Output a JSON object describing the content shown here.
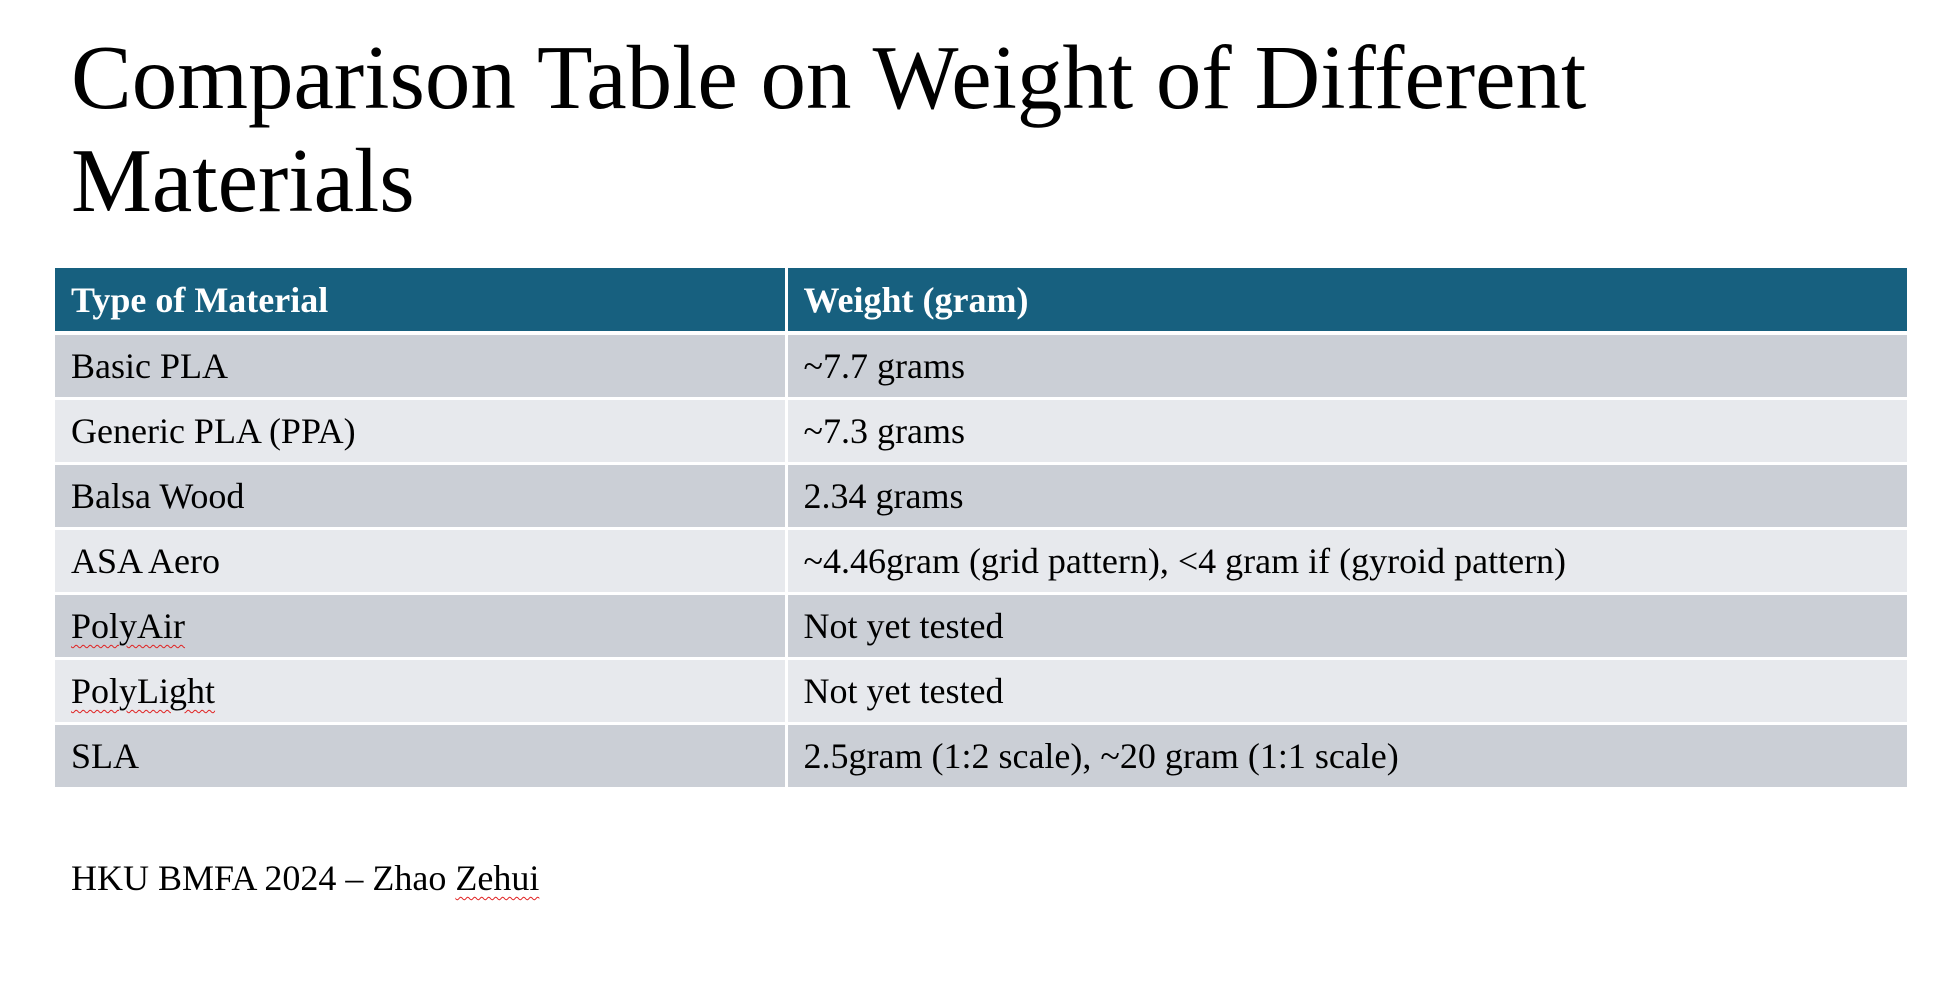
{
  "slide": {
    "title": "Comparison Table on Weight of Different Materials",
    "table": {
      "headers": [
        "Type of Material",
        "Weight (gram)"
      ],
      "rows": [
        [
          "Basic PLA",
          "~7.7 grams"
        ],
        [
          "Generic PLA (PPA)",
          "~7.3 grams"
        ],
        [
          "Balsa Wood",
          "2.34 grams"
        ],
        [
          "ASA Aero",
          "~4.46gram (grid pattern), <4 gram if (gyroid pattern)"
        ],
        [
          "PolyAir",
          "Not yet tested"
        ],
        [
          "PolyLight",
          "Not yet tested"
        ],
        [
          "SLA",
          "2.5gram  (1:2 scale), ~20 gram (1:1 scale)"
        ]
      ]
    },
    "footer": {
      "prefix": "HKU BMFA 2024 – Zhao ",
      "surname": "Zehui"
    }
  },
  "colors": {
    "header_bg": "#17607f",
    "row_dark": "#cbcfd6",
    "row_light": "#e7e9ed",
    "spellcheck_underline": "#e02020"
  }
}
